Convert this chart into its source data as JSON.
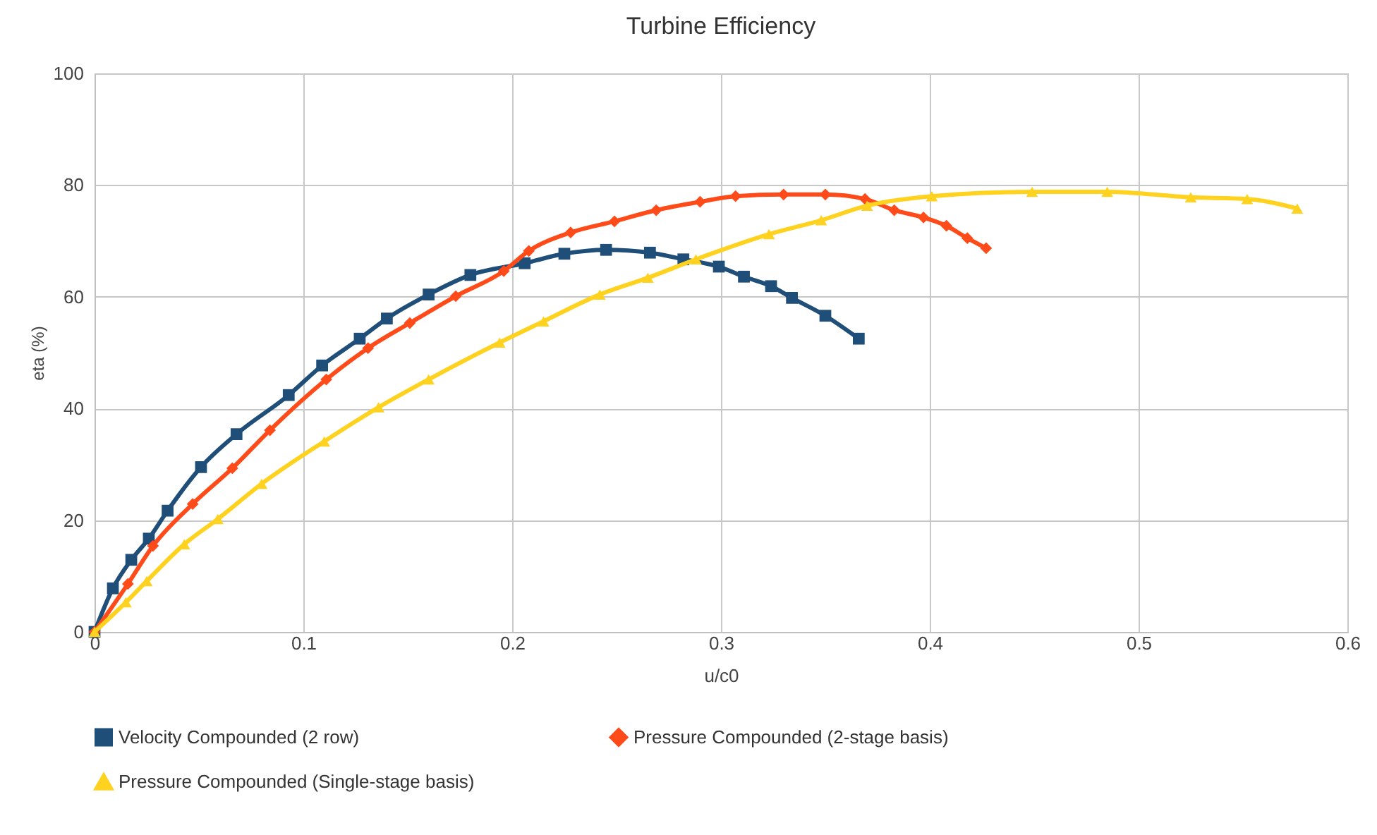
{
  "chart_data": {
    "type": "line",
    "title": "Turbine Efficiency",
    "xlabel": "u/c0",
    "ylabel": "eta (%)",
    "xlim": [
      0,
      0.6
    ],
    "xticks": [
      0,
      0.1,
      0.2,
      0.3,
      0.4,
      0.5,
      0.6
    ],
    "ylim": [
      0,
      100
    ],
    "yticks": [
      0,
      20,
      40,
      60,
      80,
      100
    ],
    "grid": true,
    "legend": "bottom",
    "series": [
      {
        "name": "Velocity Compounded (2 row)",
        "color": "#1f4e79",
        "marker": "square",
        "x": [
          0,
          0.0088,
          0.0176,
          0.026,
          0.035,
          0.051,
          0.068,
          0.093,
          0.109,
          0.127,
          0.14,
          0.16,
          0.18,
          0.206,
          0.225,
          0.245,
          0.266,
          0.282,
          0.299,
          0.311,
          0.324,
          0.334,
          0.35,
          0.366
        ],
        "values": [
          0,
          7.8,
          12.9,
          16.7,
          21.7,
          29.5,
          35.4,
          42.4,
          47.7,
          52.5,
          56.1,
          60.4,
          63.9,
          66,
          67.7,
          68.4,
          67.9,
          66.7,
          65.4,
          63.6,
          61.9,
          59.8,
          56.6,
          52.5
        ]
      },
      {
        "name": "Pressure Compounded (2-stage basis)",
        "color": "#ff4b1a",
        "marker": "diamond",
        "x": [
          0,
          0.016,
          0.028,
          0.047,
          0.066,
          0.084,
          0.111,
          0.131,
          0.151,
          0.173,
          0.196,
          0.208,
          0.228,
          0.249,
          0.269,
          0.29,
          0.307,
          0.33,
          0.35,
          0.369,
          0.383,
          0.397,
          0.408,
          0.418,
          0.427
        ],
        "values": [
          0,
          8.6,
          15.4,
          22.9,
          29.3,
          36.1,
          45.2,
          50.8,
          55.3,
          60.1,
          64.6,
          68.2,
          71.5,
          73.5,
          75.5,
          77,
          78,
          78.3,
          78.3,
          77.5,
          75.5,
          74.2,
          72.7,
          70.5,
          68.7
        ]
      },
      {
        "name": "Pressure Compounded (Single-stage basis)",
        "color": "#ffd21f",
        "marker": "triangle",
        "x": [
          0,
          0.015,
          0.025,
          0.043,
          0.059,
          0.08,
          0.11,
          0.136,
          0.16,
          0.194,
          0.215,
          0.242,
          0.265,
          0.288,
          0.323,
          0.348,
          0.37,
          0.401,
          0.449,
          0.485,
          0.525,
          0.552,
          0.576
        ],
        "values": [
          0,
          5.3,
          9.1,
          15.7,
          20.2,
          26.5,
          34.1,
          40.2,
          45.2,
          51.8,
          55.6,
          60.4,
          63.4,
          66.7,
          71.2,
          73.7,
          76.3,
          78,
          78.8,
          78.8,
          77.8,
          77.5,
          75.8
        ]
      }
    ]
  }
}
